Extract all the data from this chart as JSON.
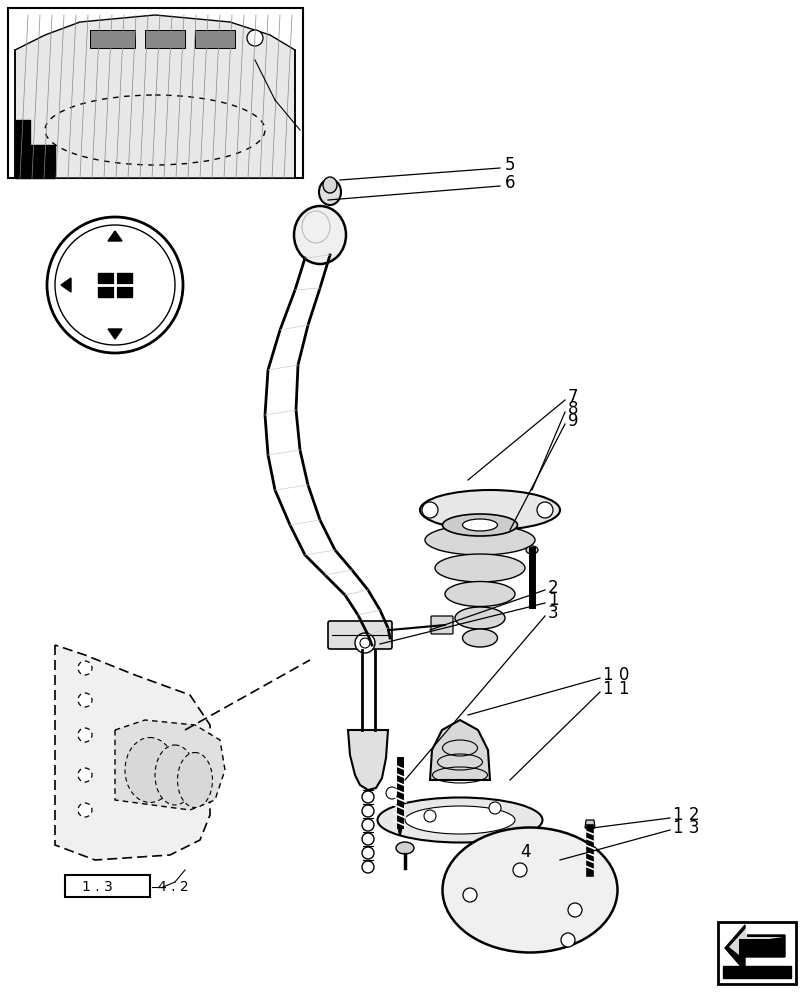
{
  "bg_color": "#ffffff",
  "line_color": "#000000",
  "light_gray": "#bbbbbb",
  "medium_gray": "#888888"
}
